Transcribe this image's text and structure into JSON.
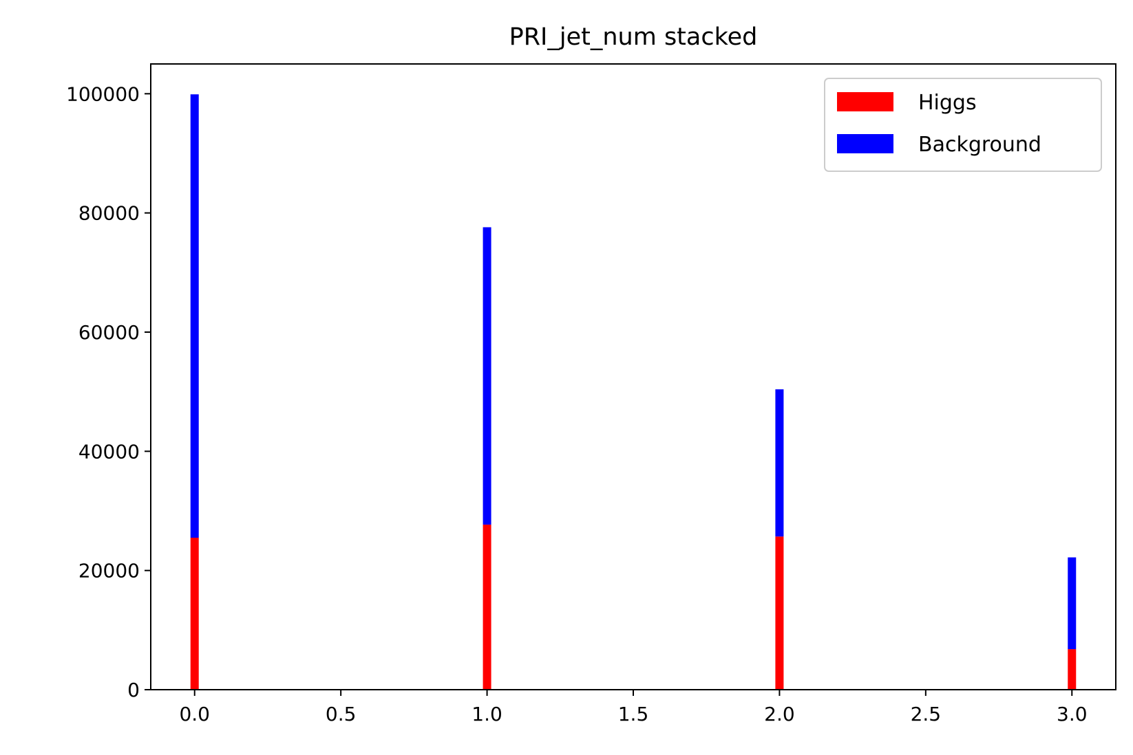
{
  "chart_data": {
    "type": "bar",
    "stacked": true,
    "title": "PRI_jet_num stacked",
    "xlabel": "",
    "ylabel": "",
    "x": [
      0,
      1,
      2,
      3
    ],
    "series": [
      {
        "name": "Higgs",
        "color": "#ff0000",
        "values": [
          25500,
          27700,
          25700,
          6800
        ]
      },
      {
        "name": "Background",
        "color": "#0000ff",
        "values": [
          74400,
          49900,
          24700,
          15400
        ]
      }
    ],
    "xlim": [
      -0.15,
      3.15
    ],
    "ylim": [
      0,
      105000
    ],
    "xticks": [
      "0.0",
      "0.5",
      "1.0",
      "1.5",
      "2.0",
      "2.5",
      "3.0"
    ],
    "yticks": [
      "0",
      "20000",
      "40000",
      "60000",
      "80000",
      "100000"
    ],
    "legend_position": "top-right",
    "grid": false
  }
}
